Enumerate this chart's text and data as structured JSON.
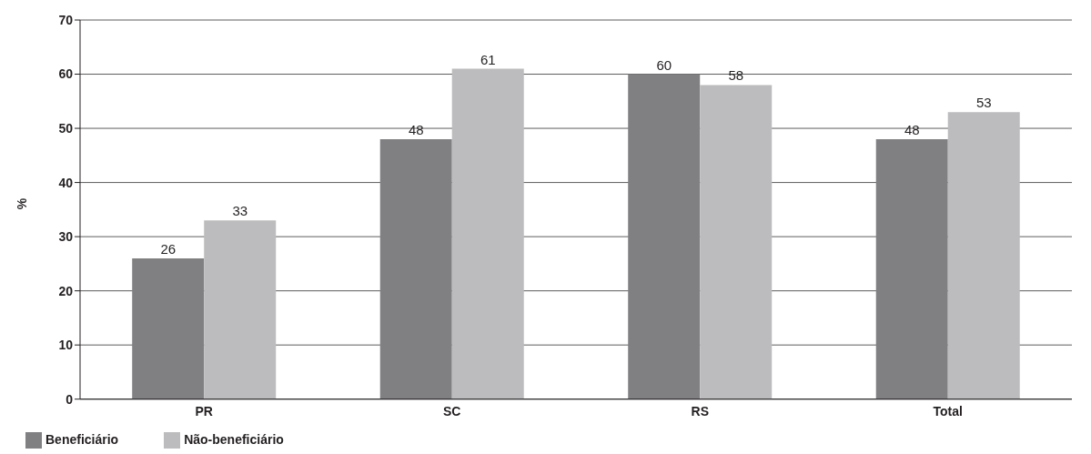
{
  "chart_data": {
    "type": "bar",
    "ylabel": "%",
    "categories": [
      "PR",
      "SC",
      "RS",
      "Total"
    ],
    "series": [
      {
        "name": "Beneficiário",
        "color": "#808083",
        "values": [
          26,
          48,
          60,
          48
        ]
      },
      {
        "name": "Não-beneficiário",
        "color": "#bcbcbe",
        "values": [
          33,
          61,
          58,
          53
        ]
      }
    ],
    "ylim": [
      0,
      70
    ],
    "yticks": [
      0,
      10,
      20,
      30,
      40,
      50,
      60,
      70
    ],
    "grid": "y",
    "legend": "bottom left",
    "data_labels": true
  }
}
